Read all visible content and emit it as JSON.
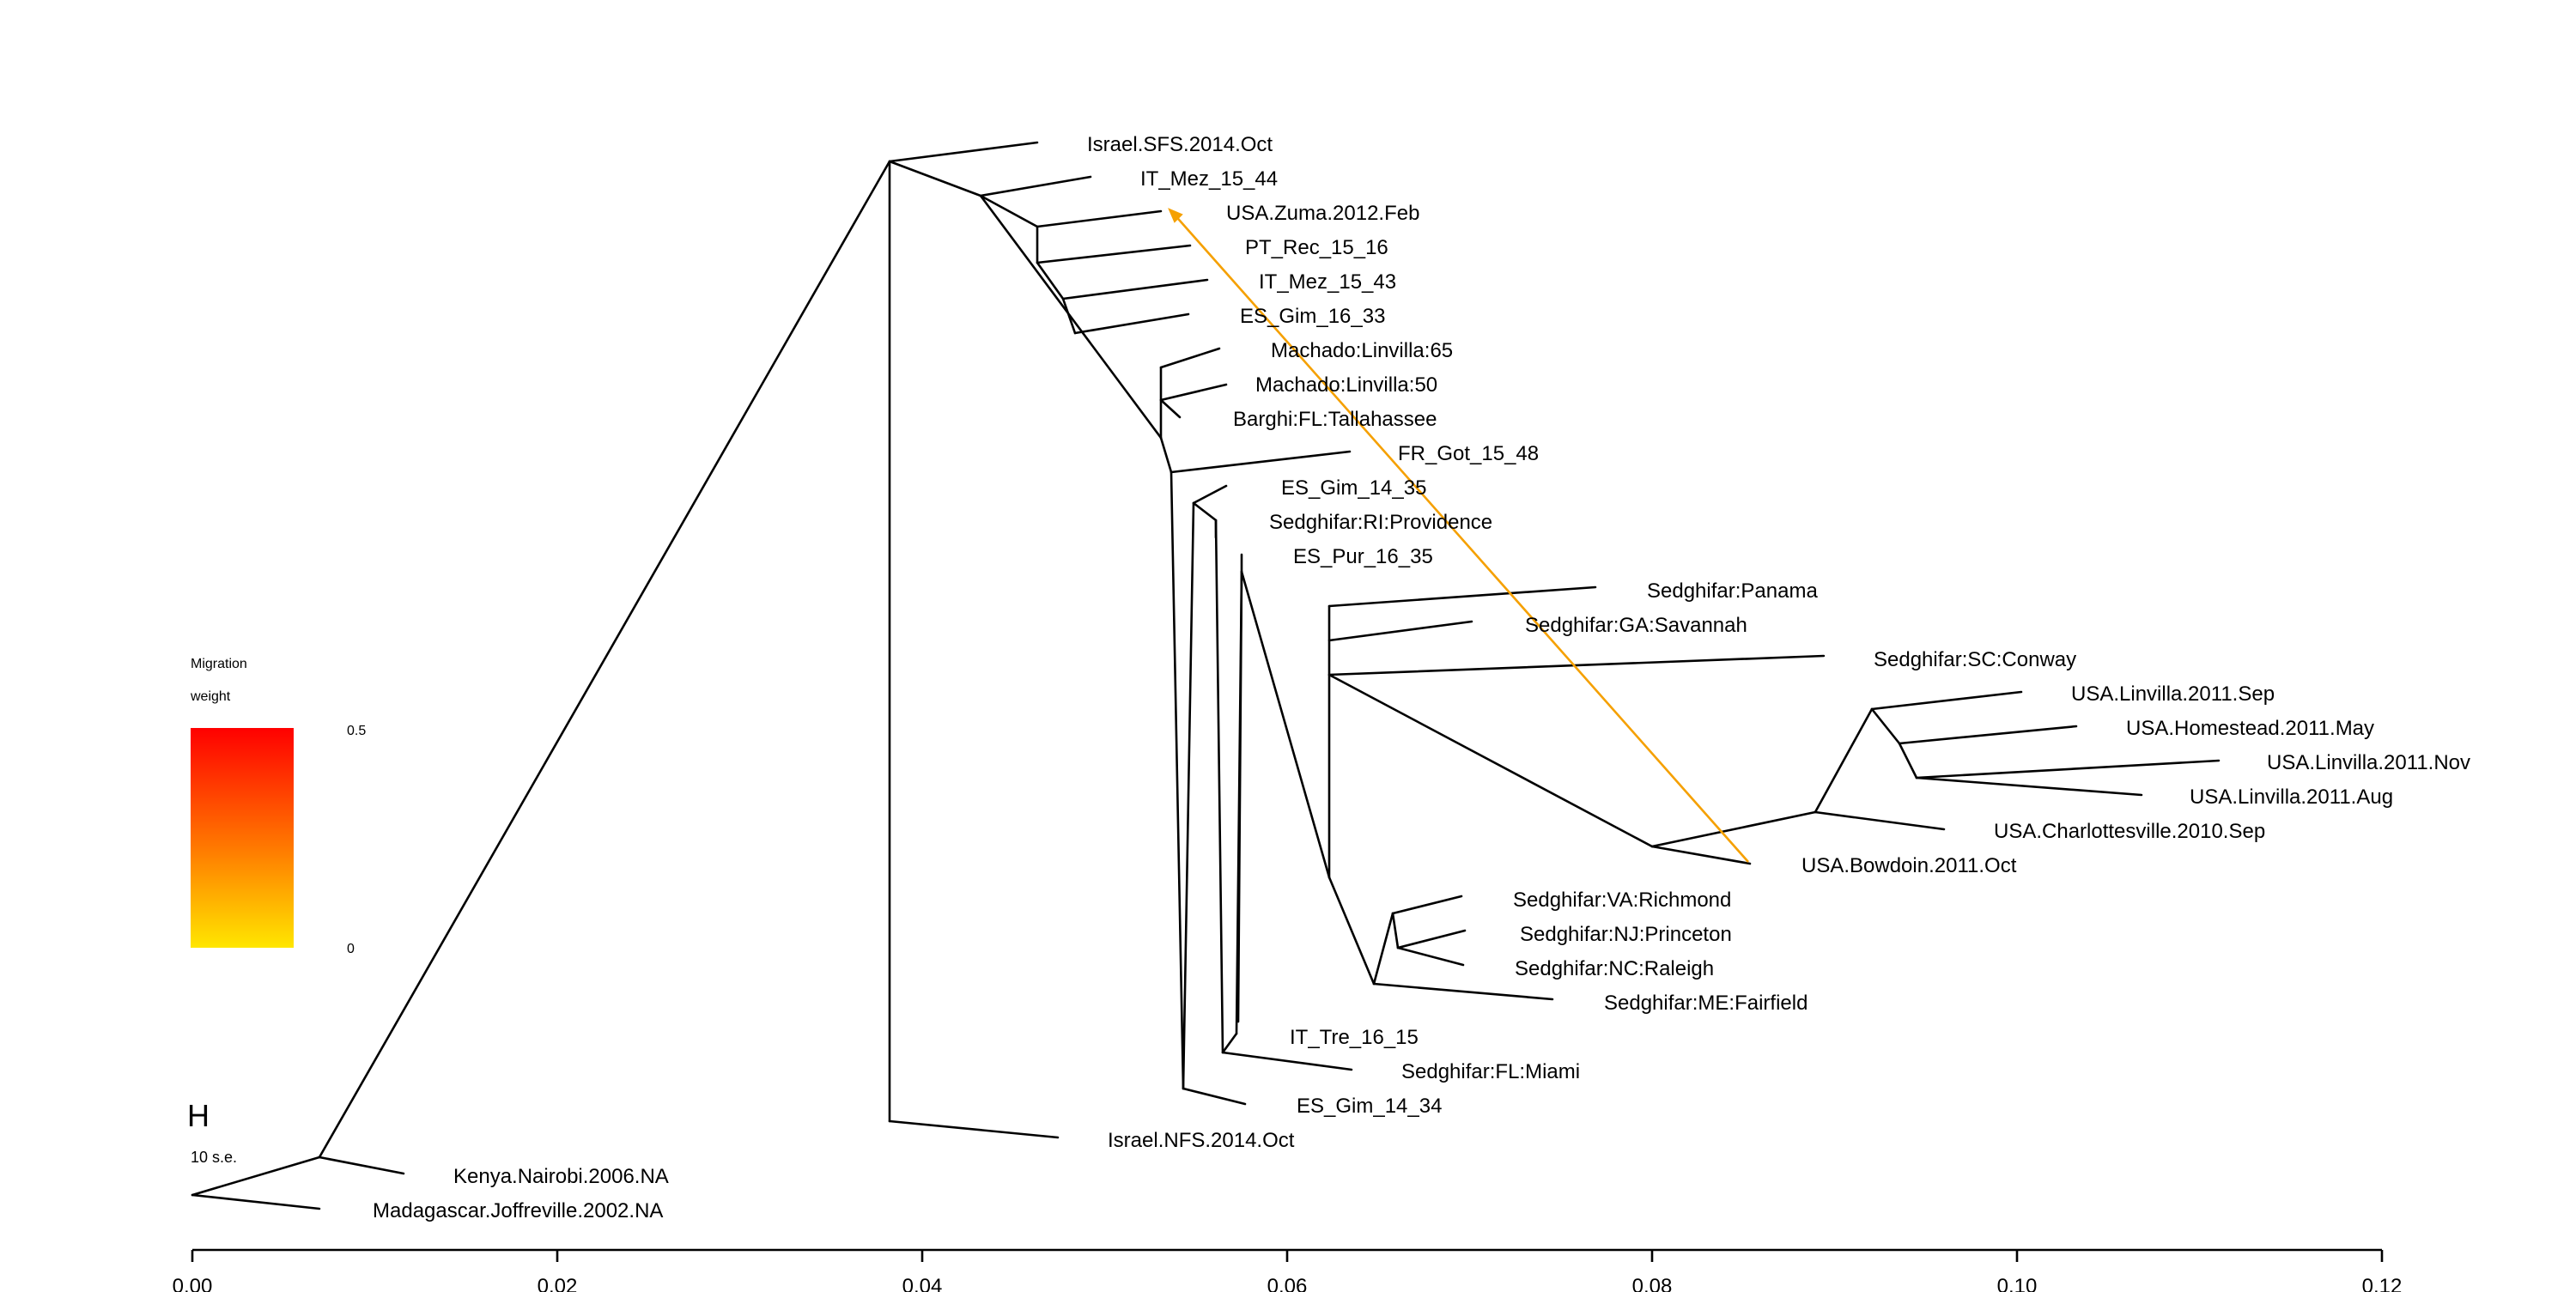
{
  "x_axis": {
    "ticks": [
      "0.00",
      "0.02",
      "0.04",
      "0.06",
      "0.08",
      "0.10",
      "0.12"
    ]
  },
  "leaves": [
    "Israel.SFS.2014.Oct",
    "IT_Mez_15_44",
    "USA.Zuma.2012.Feb",
    "PT_Rec_15_16",
    "IT_Mez_15_43",
    "ES_Gim_16_33",
    "Machado:Linvilla:65",
    "Machado:Linvilla:50",
    "Barghi:FL:Tallahassee",
    "FR_Got_15_48",
    "ES_Gim_14_35",
    "Sedghifar:RI:Providence",
    "ES_Pur_16_35",
    "Sedghifar:Panama",
    "Sedghifar:GA:Savannah",
    "Sedghifar:SC:Conway",
    "USA.Linvilla.2011.Sep",
    "USA.Homestead.2011.May",
    "USA.Linvilla.2011.Nov",
    "USA.Linvilla.2011.Aug",
    "USA.Charlottesville.2010.Sep",
    "USA.Bowdoin.2011.Oct",
    "Sedghifar:VA:Richmond",
    "Sedghifar:NJ:Princeton",
    "Sedghifar:NC:Raleigh",
    "Sedghifar:ME:Fairfield",
    "IT_Tre_16_15",
    "Sedghifar:FL:Miami",
    "ES_Gim_14_34",
    "Israel.NFS.2014.Oct",
    "Kenya.Nairobi.2006.NA",
    "Madagascar.Joffreville.2002.NA"
  ],
  "legend": {
    "title_line1": "Migration",
    "title_line2": "weight",
    "max_label": "0.5",
    "min_label": "0",
    "color_top": "#ff0000",
    "color_bottom": "#ffe600"
  },
  "scale": {
    "symbol": "H",
    "label": "10 s.e."
  },
  "migration_color": "#f5a000"
}
